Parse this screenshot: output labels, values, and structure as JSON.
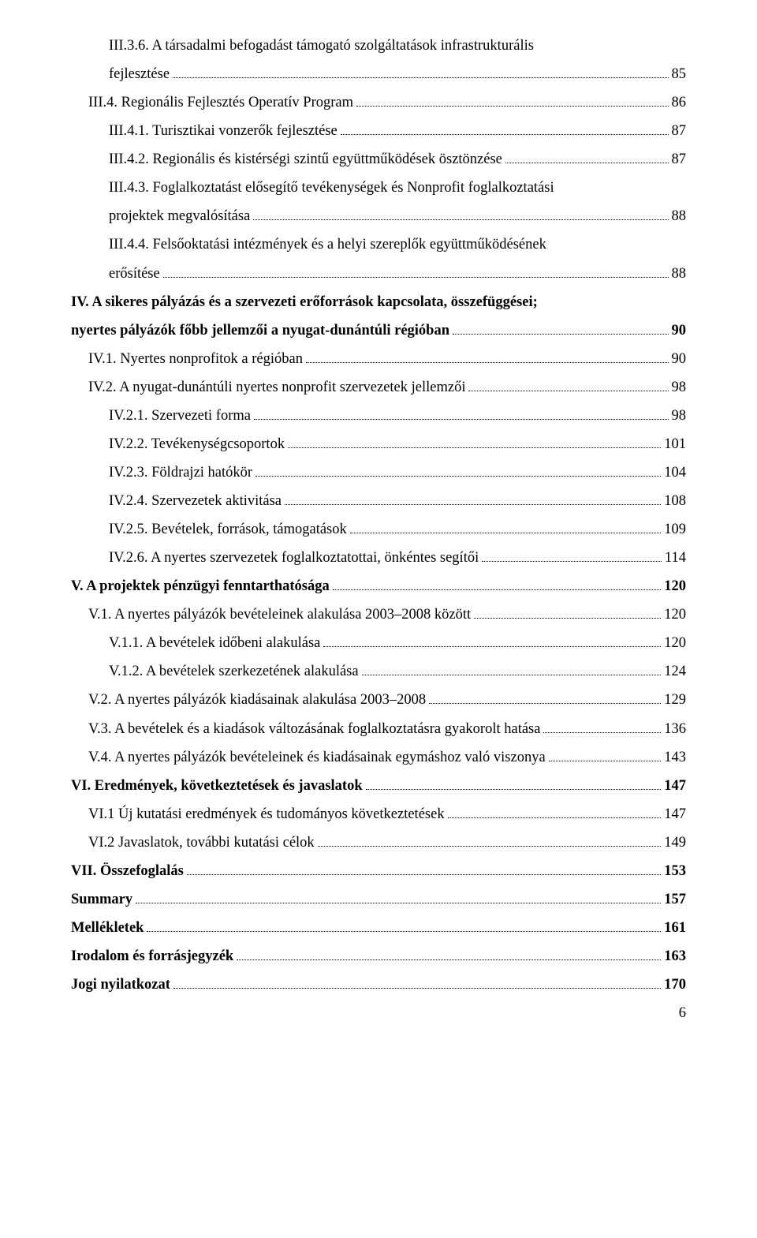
{
  "text_color": "#000000",
  "background_color": "#ffffff",
  "font_family": "Times New Roman",
  "base_font_size_pt": 14,
  "line_spacing": 1.95,
  "page_number": "6",
  "entries": [
    {
      "indent": 2,
      "bold": false,
      "label_lines": [
        "III.3.6. A társadalmi befogadást támogató szolgáltatások infrastrukturális",
        "fejlesztése"
      ],
      "page": "85"
    },
    {
      "indent": 1,
      "bold": false,
      "label_lines": [
        "III.4. Regionális Fejlesztés Operatív Program"
      ],
      "page": "86"
    },
    {
      "indent": 2,
      "bold": false,
      "label_lines": [
        "III.4.1. Turisztikai vonzerők fejlesztése"
      ],
      "page": "87"
    },
    {
      "indent": 2,
      "bold": false,
      "label_lines": [
        "III.4.2. Regionális és kistérségi szintű együttműködések ösztönzése"
      ],
      "page": "87"
    },
    {
      "indent": 2,
      "bold": false,
      "label_lines": [
        "III.4.3. Foglalkoztatást elősegítő tevékenységek és Nonprofit foglalkoztatási",
        "projektek megvalósítása"
      ],
      "page": "88"
    },
    {
      "indent": 2,
      "bold": false,
      "label_lines": [
        "III.4.4. Felsőoktatási intézmények és a helyi szereplők együttműködésének",
        "erősítése"
      ],
      "page": "88"
    },
    {
      "indent": 0,
      "bold": true,
      "label_lines": [
        "IV. A sikeres pályázás és a szervezeti erőforrások kapcsolata, összefüggései;",
        "nyertes pályázók főbb jellemzői a nyugat-dunántúli régióban"
      ],
      "page": "90"
    },
    {
      "indent": 1,
      "bold": false,
      "label_lines": [
        "IV.1. Nyertes nonprofitok a régióban"
      ],
      "page": "90"
    },
    {
      "indent": 1,
      "bold": false,
      "label_lines": [
        "IV.2. A nyugat-dunántúli nyertes nonprofit szervezetek jellemzői"
      ],
      "page": "98"
    },
    {
      "indent": 2,
      "bold": false,
      "label_lines": [
        "IV.2.1. Szervezeti forma"
      ],
      "page": "98"
    },
    {
      "indent": 2,
      "bold": false,
      "label_lines": [
        "IV.2.2. Tevékenységcsoportok"
      ],
      "page": "101"
    },
    {
      "indent": 2,
      "bold": false,
      "label_lines": [
        "IV.2.3. Földrajzi hatókör"
      ],
      "page": "104"
    },
    {
      "indent": 2,
      "bold": false,
      "label_lines": [
        "IV.2.4. Szervezetek aktivitása"
      ],
      "page": "108"
    },
    {
      "indent": 2,
      "bold": false,
      "label_lines": [
        "IV.2.5. Bevételek, források, támogatások"
      ],
      "page": "109"
    },
    {
      "indent": 2,
      "bold": false,
      "label_lines": [
        "IV.2.6. A nyertes szervezetek foglalkoztatottai, önkéntes segítői"
      ],
      "page": "114"
    },
    {
      "indent": 0,
      "bold": true,
      "label_lines": [
        "V.   A projektek pénzügyi fenntarthatósága"
      ],
      "page": "120"
    },
    {
      "indent": 1,
      "bold": false,
      "label_lines": [
        "V.1. A nyertes pályázók bevételeinek alakulása 2003–2008 között"
      ],
      "page": "120"
    },
    {
      "indent": 2,
      "bold": false,
      "label_lines": [
        "V.1.1. A bevételek időbeni alakulása"
      ],
      "page": "120"
    },
    {
      "indent": 2,
      "bold": false,
      "label_lines": [
        "V.1.2. A bevételek szerkezetének alakulása"
      ],
      "page": "124"
    },
    {
      "indent": 1,
      "bold": false,
      "label_lines": [
        "V.2. A nyertes pályázók kiadásainak alakulása 2003–2008"
      ],
      "page": "129"
    },
    {
      "indent": 1,
      "bold": false,
      "label_lines": [
        "V.3. A bevételek és a kiadások változásának foglalkoztatásra gyakorolt hatása"
      ],
      "page": "136"
    },
    {
      "indent": 1,
      "bold": false,
      "label_lines": [
        "V.4. A nyertes pályázók bevételeinek és kiadásainak egymáshoz való viszonya"
      ],
      "page": "143"
    },
    {
      "indent": 0,
      "bold": true,
      "label_lines": [
        "VI.  Eredmények, következtetések és javaslatok"
      ],
      "page": "147"
    },
    {
      "indent": 1,
      "bold": false,
      "label_lines": [
        "VI.1 Új kutatási eredmények és tudományos következtetések"
      ],
      "page": "147"
    },
    {
      "indent": 1,
      "bold": false,
      "label_lines": [
        "VI.2 Javaslatok, további kutatási célok"
      ],
      "page": "149"
    },
    {
      "indent": 0,
      "bold": true,
      "label_lines": [
        "VII. Összefoglalás"
      ],
      "page": "153"
    },
    {
      "indent": 0,
      "bold": true,
      "label_lines": [
        "Summary"
      ],
      "page": "157"
    },
    {
      "indent": 0,
      "bold": true,
      "label_lines": [
        "Mellékletek"
      ],
      "page": "161"
    },
    {
      "indent": 0,
      "bold": true,
      "label_lines": [
        "Irodalom és forrásjegyzék"
      ],
      "page": "163"
    },
    {
      "indent": 0,
      "bold": true,
      "label_lines": [
        "Jogi nyilatkozat"
      ],
      "page": "170"
    }
  ]
}
